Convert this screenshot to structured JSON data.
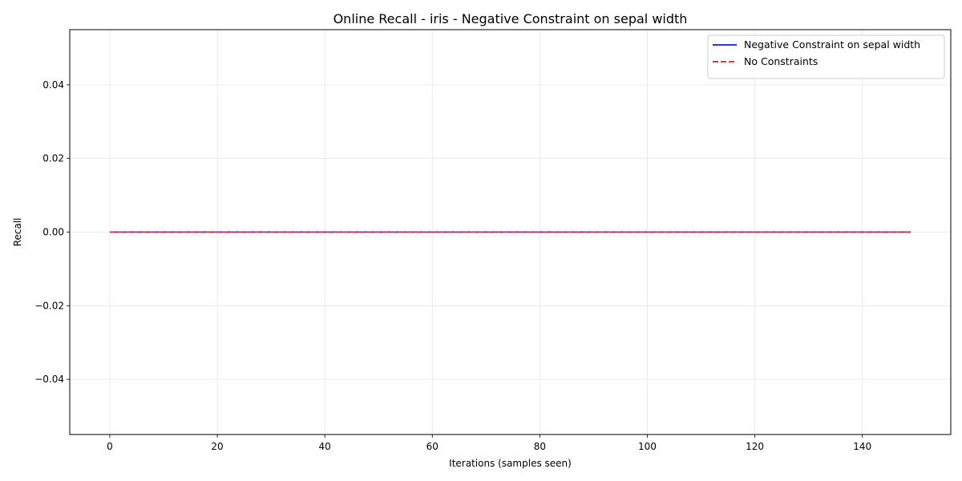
{
  "chart_data": {
    "type": "line",
    "title": "Online Recall - iris - Negative Constraint on sepal width",
    "xlabel": "Iterations (samples seen)",
    "ylabel": "Recall",
    "xlim": [
      -7.45,
      156.45
    ],
    "ylim": [
      -0.055,
      0.055
    ],
    "xticks": [
      0,
      20,
      40,
      60,
      80,
      100,
      120,
      140
    ],
    "xtick_labels": [
      "0",
      "20",
      "40",
      "60",
      "80",
      "100",
      "120",
      "140"
    ],
    "yticks": [
      -0.04,
      -0.02,
      0.0,
      0.02,
      0.04
    ],
    "ytick_labels": [
      "−0.04",
      "−0.02",
      "0.00",
      "0.02",
      "0.04"
    ],
    "grid": true,
    "legend_position": "top-right",
    "series": [
      {
        "name": "Negative Constraint on sepal width",
        "color": "#3333dd",
        "style": "solid",
        "x": [
          0,
          149
        ],
        "y": [
          0.0,
          0.0
        ]
      },
      {
        "name": "No Constraints",
        "color": "#ee3333",
        "style": "dashed",
        "x": [
          0,
          149
        ],
        "y": [
          0.0,
          0.0
        ]
      }
    ]
  }
}
